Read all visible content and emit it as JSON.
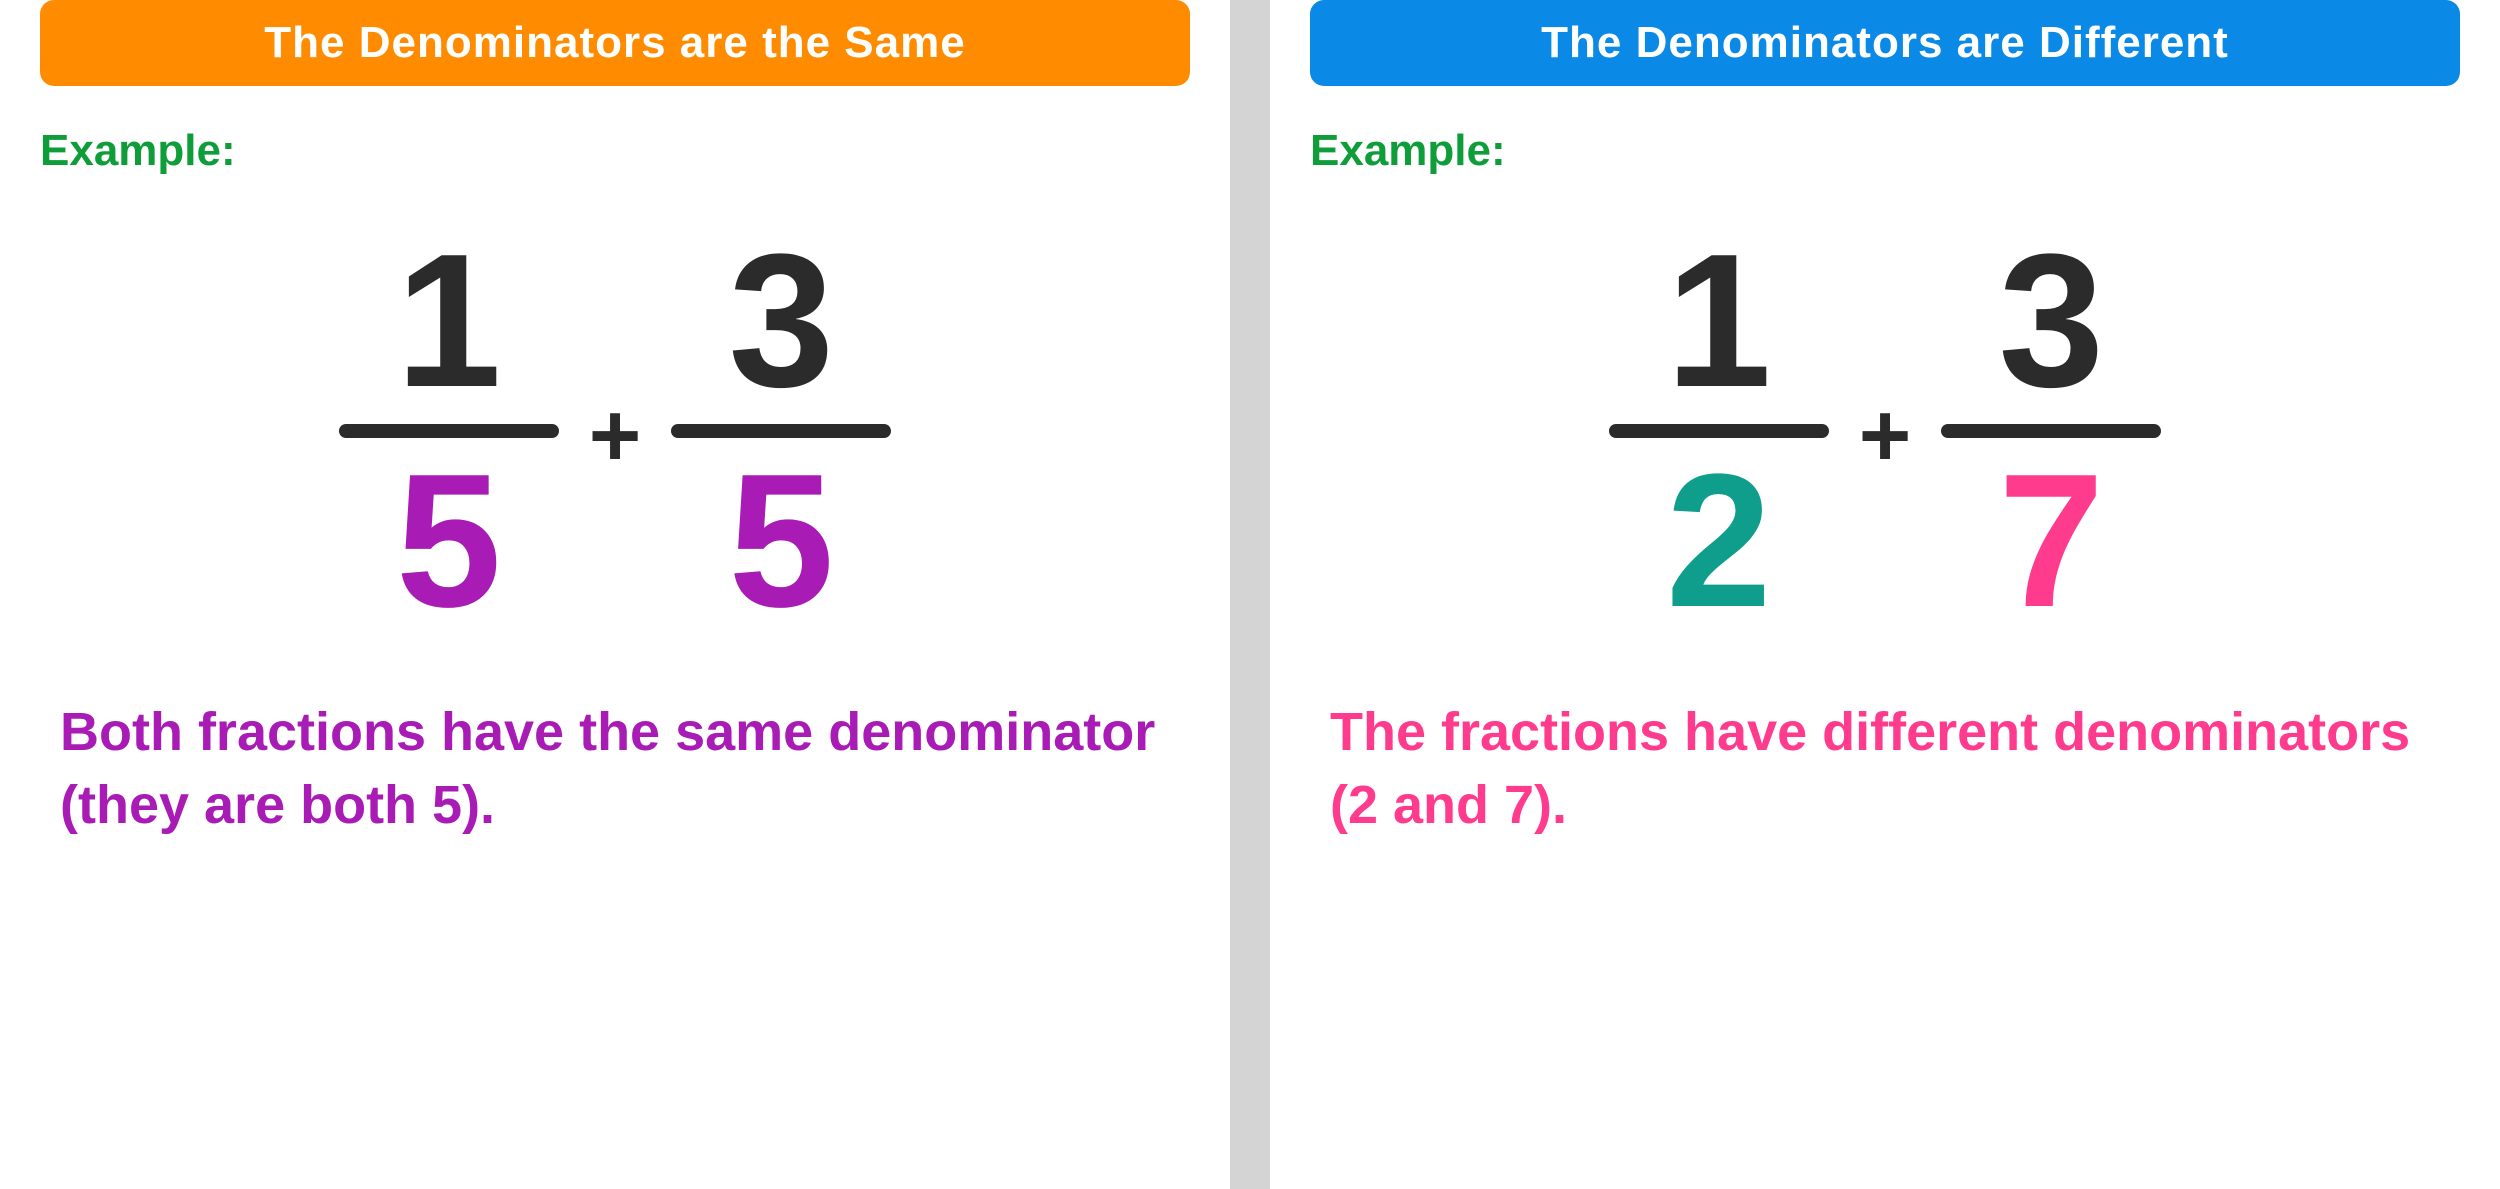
{
  "colors": {
    "orange": "#ff8c00",
    "blue": "#0a8ae6",
    "green": "#0f9d3a",
    "dark": "#2b2b2b",
    "purple": "#a81bb5",
    "teal": "#0f9d8c",
    "pink": "#ff3b8d",
    "divider": "#d4d4d4",
    "white": "#ffffff"
  },
  "left": {
    "title": "The Denominators are the Same",
    "title_bg": "#ff8c00",
    "example_label": "Example:",
    "example_color": "#0f9d3a",
    "fraction1": {
      "numerator": "1",
      "denominator": "5",
      "denom_color": "#a81bb5"
    },
    "operator": "+",
    "fraction2": {
      "numerator": "3",
      "denominator": "5",
      "denom_color": "#a81bb5"
    },
    "caption": "Both fractions have the same denominator (they are both 5).",
    "caption_color": "#a81bb5"
  },
  "right": {
    "title": "The Denominators are Different",
    "title_bg": "#0a8ae6",
    "example_label": "Example:",
    "example_color": "#0f9d3a",
    "fraction1": {
      "numerator": "1",
      "denominator": "2",
      "denom_color": "#0f9d8c"
    },
    "operator": "+",
    "fraction2": {
      "numerator": "3",
      "denominator": "7",
      "denom_color": "#ff3b8d"
    },
    "caption": "The fractions have different denominators (2 and 7).",
    "caption_color": "#ff3b8d"
  }
}
